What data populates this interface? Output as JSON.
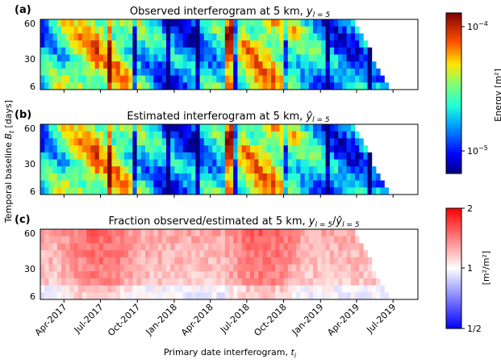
{
  "figure": {
    "ylabel": "Temporal baseline B_t [days]",
    "xlabel": "Primary date interferogram, t_i",
    "x_ticks": [
      "Apr-2017",
      "Jul-2017",
      "Oct-2017",
      "Jan-2018",
      "Apr-2018",
      "Jul-2018",
      "Oct-2018",
      "Jan-2019",
      "Apr-2019",
      "Jul-2019"
    ],
    "y_ticks": [
      "6",
      "30",
      "60"
    ]
  },
  "chart_data": [
    {
      "type": "heatmap",
      "panel": "(a)",
      "title_prefix": "Observed interferogram at 5 km, ",
      "title_math": "y_{l=5}",
      "x_range": [
        "2017-02-01",
        "2019-09-01"
      ],
      "y_range": [
        6,
        60
      ],
      "colormap": "jet (log scale)",
      "colorbar": {
        "label": "Energy [m^2]",
        "ticks": [
          "10^-4",
          "10^-5"
        ],
        "range": [
          7e-06,
          0.00015
        ]
      },
      "white_triangle_cutoff": "2019-07-25"
    },
    {
      "type": "heatmap",
      "panel": "(b)",
      "title_prefix": "Estimated interferogram at 5 km, ",
      "title_math": "ŷ_{l=5}",
      "x_range": [
        "2017-02-01",
        "2019-09-01"
      ],
      "y_range": [
        6,
        60
      ],
      "colormap": "jet (log scale)",
      "shares_colorbar_with": "(a)"
    },
    {
      "type": "heatmap",
      "panel": "(c)",
      "title_prefix": "Fraction observed/estimated at 5 km, ",
      "title_math": "y_{l=5}/ŷ_{l=5}",
      "x_range": [
        "2017-02-01",
        "2019-09-01"
      ],
      "y_range": [
        6,
        60
      ],
      "colormap": "bwr (log scale)",
      "colorbar": {
        "label": "[m^2/m^2]",
        "ticks": [
          "2",
          "1",
          "1/2"
        ],
        "range": [
          0.5,
          2
        ]
      }
    }
  ],
  "colors": {
    "frame": "#000000",
    "background": "#ffffff"
  },
  "labels": {
    "panel_a": "(a)",
    "panel_b": "(b)",
    "panel_c": "(c)",
    "title_a": "Observed interferogram at 5 km, ",
    "title_b": "Estimated interferogram at 5 km, ",
    "title_c": "Fraction observed/estimated at 5 km, ",
    "energy_label": "Energy [m²]",
    "ratio_label": "[m²/m²]",
    "cb1_top": "10",
    "cb1_top_exp": "−4",
    "cb1_bottom": "10",
    "cb1_bottom_exp": "−5",
    "cb2_top": "2",
    "cb2_mid": "1",
    "cb2_bottom": "1/2"
  }
}
